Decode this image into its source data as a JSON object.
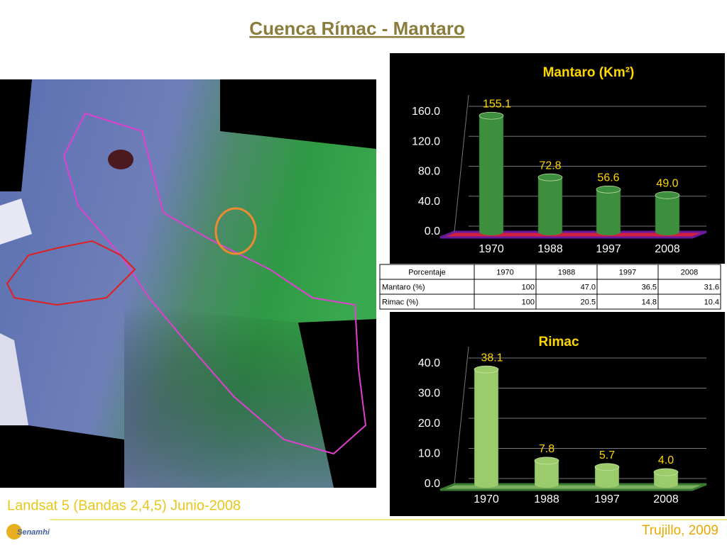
{
  "title": "Cuenca Rímac - Mantaro",
  "caption": "Landsat 5 (Bandas 2,4,5) Junio-2008",
  "footer": "Trujillo, 2009",
  "logo": "Senamhi",
  "chart_data": [
    {
      "type": "bar",
      "title": "Mantaro (Km²)",
      "categories": [
        "1970",
        "1988",
        "1997",
        "2008"
      ],
      "values": [
        155.1,
        72.8,
        56.6,
        49.0
      ],
      "value_labels": [
        "155.1",
        "72.8",
        "56.6",
        "49.0"
      ],
      "color": "#3d8f3d",
      "ylim": [
        0,
        160
      ],
      "yticks": [
        {
          "value": 0,
          "label": "0.0"
        },
        {
          "value": 40,
          "label": "40.0"
        },
        {
          "value": 80,
          "label": "80.0"
        },
        {
          "value": 120,
          "label": "120.0"
        },
        {
          "value": 160,
          "label": "160.0"
        }
      ],
      "grid": true
    },
    {
      "type": "bar",
      "title": "Rimac",
      "categories": [
        "1970",
        "1988",
        "1997",
        "2008"
      ],
      "values": [
        38.1,
        7.8,
        5.7,
        4.0
      ],
      "value_labels": [
        "38.1",
        "7.8",
        "5.7",
        "4.0"
      ],
      "color": "#9ccb6b",
      "ylim": [
        0,
        40
      ],
      "yticks": [
        {
          "value": 0,
          "label": "0.0"
        },
        {
          "value": 10,
          "label": "10.0"
        },
        {
          "value": 20,
          "label": "20.0"
        },
        {
          "value": 30,
          "label": "30.0"
        },
        {
          "value": 40,
          "label": "40.0"
        }
      ],
      "grid": true
    }
  ],
  "table": {
    "header": [
      "Porcentaje",
      "1970",
      "1988",
      "1997",
      "2008"
    ],
    "rows": [
      [
        "Mantaro (%)",
        "100",
        "47.0",
        "36.5",
        "31.6"
      ],
      [
        "Rimac (%)",
        "100",
        "20.5",
        "14.8",
        "10.4"
      ]
    ]
  }
}
